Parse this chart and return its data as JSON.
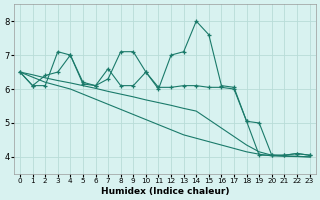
{
  "xlabel": "Humidex (Indice chaleur)",
  "background_color": "#d8f2f0",
  "grid_color": "#b8dcd8",
  "line_color": "#1a7a6a",
  "xlim": [
    -0.5,
    23.5
  ],
  "ylim": [
    3.5,
    8.5
  ],
  "yticks": [
    4,
    5,
    6,
    7,
    8
  ],
  "xticks": [
    0,
    1,
    2,
    3,
    4,
    5,
    6,
    7,
    8,
    9,
    10,
    11,
    12,
    13,
    14,
    15,
    16,
    17,
    18,
    19,
    20,
    21,
    22,
    23
  ],
  "series": [
    {
      "x": [
        0,
        1,
        2,
        3,
        4,
        5,
        6,
        7,
        8,
        9,
        10,
        11,
        12,
        13,
        14,
        15,
        16,
        17,
        18,
        19,
        20,
        21,
        22,
        23
      ],
      "y": [
        6.5,
        6.1,
        6.1,
        7.1,
        7.0,
        6.2,
        6.1,
        6.3,
        7.1,
        7.1,
        6.5,
        6.0,
        7.0,
        7.1,
        8.0,
        7.6,
        6.1,
        6.05,
        5.05,
        5.0,
        4.05,
        4.05,
        4.1,
        4.05
      ],
      "marker": true
    },
    {
      "x": [
        0,
        1,
        2,
        3,
        4,
        5,
        6,
        7,
        8,
        9,
        10,
        11,
        12,
        13,
        14,
        15,
        16,
        17,
        18,
        19,
        20,
        21,
        22,
        23
      ],
      "y": [
        6.5,
        6.1,
        6.4,
        6.5,
        7.0,
        6.15,
        6.1,
        6.6,
        6.1,
        6.1,
        6.5,
        6.05,
        6.05,
        6.1,
        6.1,
        6.05,
        6.05,
        6.0,
        5.05,
        4.05,
        4.05,
        4.05,
        4.1,
        4.05
      ],
      "marker": true
    },
    {
      "x": [
        0,
        1,
        2,
        3,
        4,
        5,
        6,
        7,
        8,
        9,
        10,
        11,
        12,
        13,
        14,
        15,
        16,
        17,
        18,
        19,
        20,
        21,
        22,
        23
      ],
      "y": [
        6.5,
        6.35,
        6.2,
        6.1,
        6.0,
        5.85,
        5.7,
        5.55,
        5.4,
        5.25,
        5.1,
        4.95,
        4.8,
        4.65,
        4.55,
        4.45,
        4.35,
        4.25,
        4.15,
        4.08,
        4.03,
        4.02,
        4.01,
        4.0
      ],
      "marker": false
    },
    {
      "x": [
        0,
        1,
        2,
        3,
        4,
        5,
        6,
        7,
        8,
        9,
        10,
        11,
        12,
        13,
        14,
        15,
        16,
        17,
        18,
        19,
        20,
        21,
        22,
        23
      ],
      "y": [
        6.5,
        6.42,
        6.33,
        6.25,
        6.18,
        6.1,
        6.02,
        5.93,
        5.85,
        5.77,
        5.68,
        5.6,
        5.52,
        5.43,
        5.35,
        5.1,
        4.85,
        4.6,
        4.35,
        4.15,
        4.05,
        4.03,
        4.02,
        4.0
      ],
      "marker": false
    }
  ]
}
